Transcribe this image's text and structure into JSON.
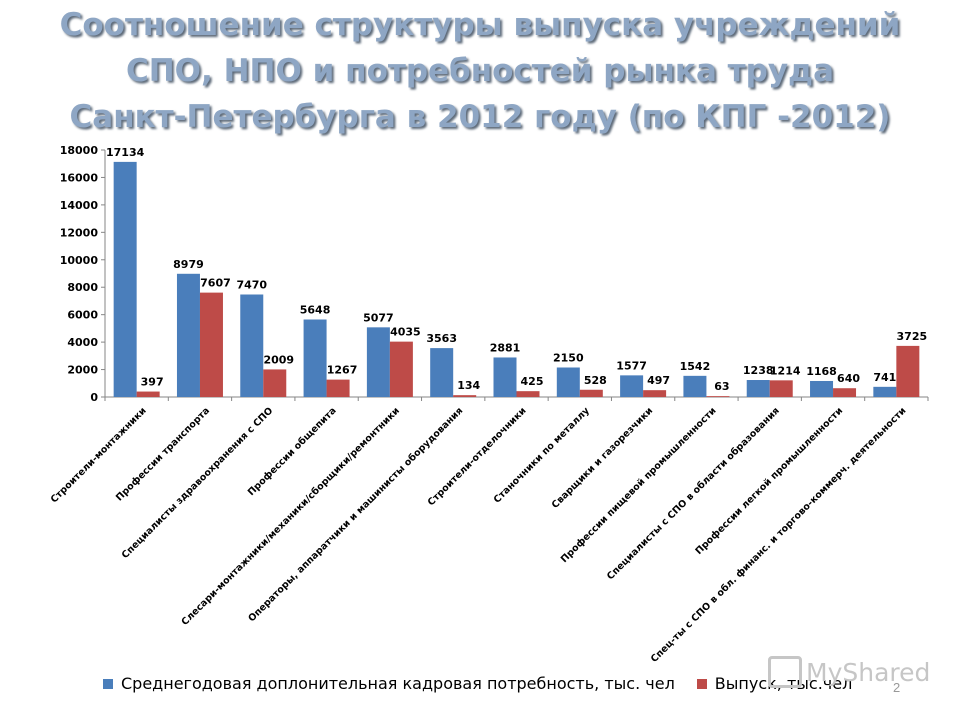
{
  "title": {
    "line1": "Соотношение структуры выпуска учреждений",
    "line2": "СПО, НПО и потребностей рынка труда",
    "line3": "Санкт-Петербурга в 2012 году (по КПГ -2012)"
  },
  "chart_data": {
    "type": "bar",
    "title": "Соотношение структуры выпуска учреждений СПО, НПО и потребностей рынка труда Санкт-Петербурга в 2012 году (по КПГ -2012)",
    "categories": [
      "Строители-монтажники",
      "Профессии транспорта",
      "Специалисты здравоохранения с СПО",
      "Профессии общепита",
      "Слесари-монтажники/механики/сборщики/ремонтники",
      "Операторы, аппаратчики и машинисты оборудования",
      "Строители-отделочники",
      "Станочники по металлу",
      "Сварщики и газорезчики",
      "Профессии пищевой промышленности",
      "Специалисты с СПО в области образования",
      "Профессии легкой промышленности",
      "Спец-ты с СПО в обл. финанс. и торгово-коммерч. деятельности"
    ],
    "series": [
      {
        "name": "Среднегодовая доплонительная кадровая потребность, тыс. чел",
        "color": "#4a7ebb",
        "values": [
          17134,
          8979,
          7470,
          5648,
          5077,
          3563,
          2881,
          2150,
          1577,
          1542,
          1238,
          1168,
          741
        ]
      },
      {
        "name": "Выпуск, тыс.чел",
        "color": "#be4b48",
        "values": [
          397,
          7607,
          2009,
          1267,
          4035,
          134,
          425,
          528,
          497,
          63,
          1214,
          640,
          3725
        ]
      }
    ],
    "yticks": [
      0,
      2000,
      4000,
      6000,
      8000,
      10000,
      12000,
      14000,
      16000,
      18000
    ],
    "ylim": [
      0,
      18000
    ],
    "xlabel": "",
    "ylabel": "",
    "grid": false,
    "legend_position": "bottom"
  },
  "legend": {
    "series1": "Среднегодовая доплонительная кадровая потребность, тыс. чел",
    "series2": "Выпуск, тыс.чел"
  },
  "watermark": "MyShared",
  "page_number": "2"
}
